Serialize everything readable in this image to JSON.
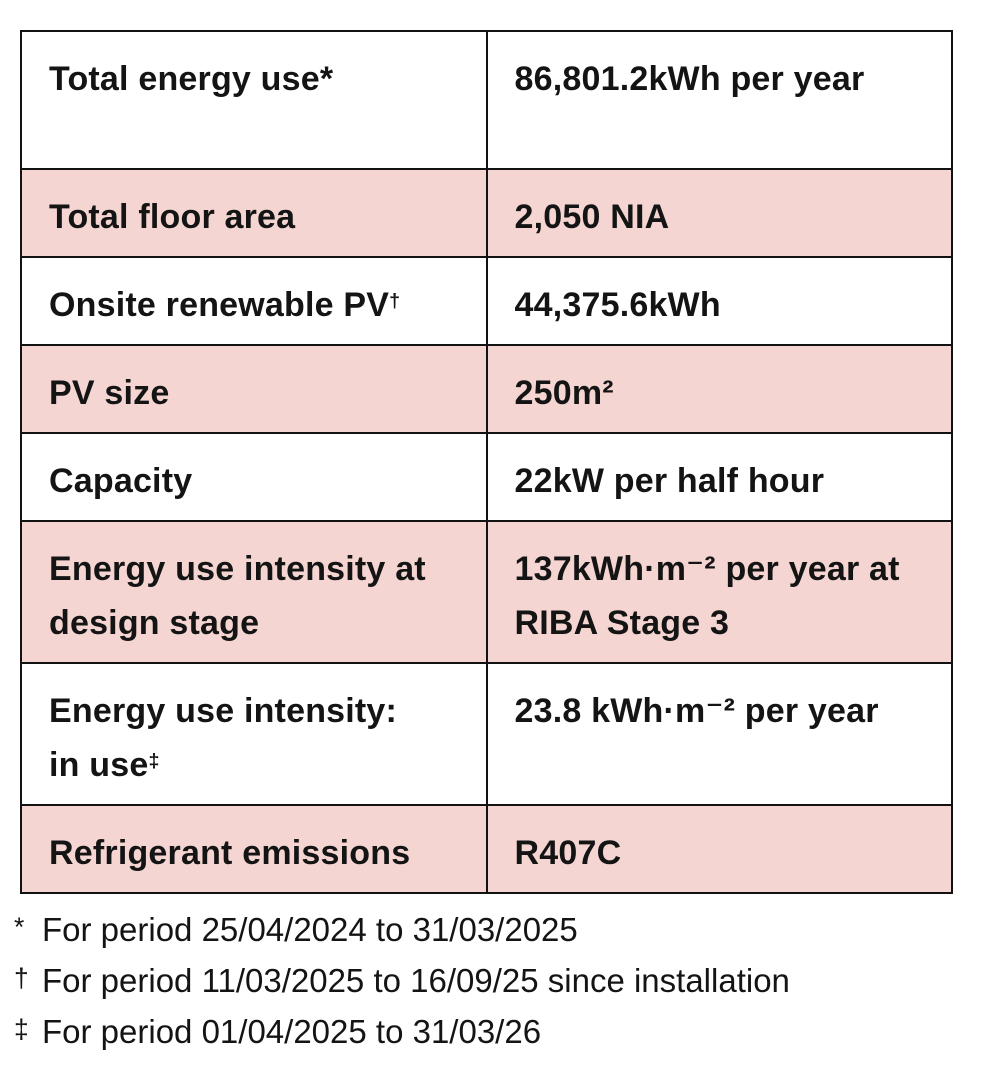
{
  "chart_data": {
    "type": "table",
    "columns": [
      "metric",
      "value"
    ],
    "rows": [
      {
        "label": "Total energy use*",
        "sup": "",
        "value": "86,801.2kWh per year"
      },
      {
        "label": "Total floor area",
        "sup": "",
        "value": "2,050 NIA"
      },
      {
        "label": "Onsite renewable PV",
        "sup": "†",
        "value": "44,375.6kWh"
      },
      {
        "label": "PV size",
        "sup": "",
        "value": "250m²"
      },
      {
        "label": "Capacity",
        "sup": "",
        "value": "22kW per half hour"
      },
      {
        "label": "Energy use intensity at\ndesign stage",
        "sup": "",
        "value": "137kWh·m⁻² per year at\nRIBA Stage 3"
      },
      {
        "label": "Energy use intensity:\nin use",
        "sup": "‡",
        "value": "23.8 kWh·m⁻² per year"
      },
      {
        "label": "Refrigerant emissions",
        "sup": "",
        "value": "R407C"
      }
    ],
    "footnotes": [
      {
        "marker": "*",
        "text": "For period 25/04/2024 to 31/03/2025"
      },
      {
        "marker": "†",
        "text": "For period 11/03/2025 to 16/09/25 since installation"
      },
      {
        "marker": "‡",
        "text": "For period 01/04/2025 to 31/03/26"
      }
    ]
  },
  "colors": {
    "row_shaded": "#f4d5d1",
    "border": "#121212",
    "text": "#141414",
    "background": "#ffffff"
  }
}
